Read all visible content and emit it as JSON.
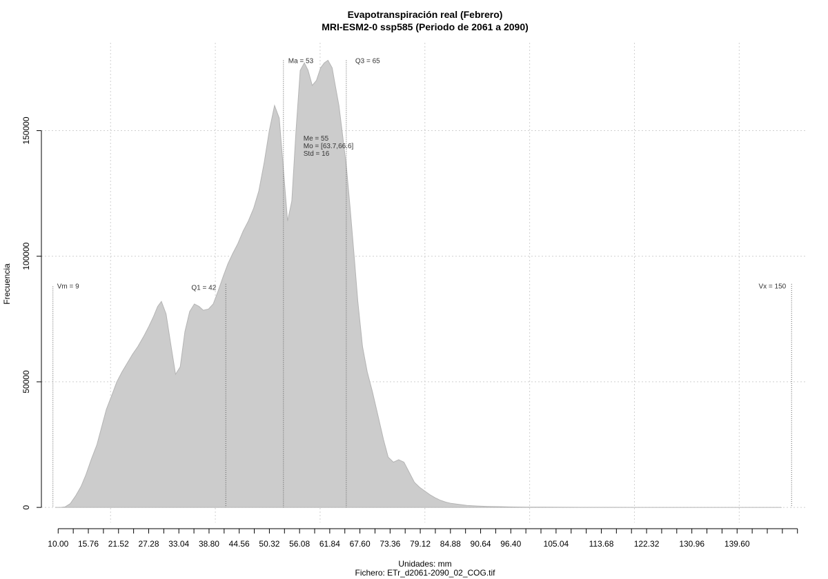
{
  "chart_data": {
    "type": "area",
    "title": "Evapotranspiración real (Febrero)",
    "subtitle": "MRI-ESM2-0 ssp585 (Periodo de 2061 a 2090)",
    "xlabel": "Unidades: mm",
    "ylabel": "Frecuencia",
    "footer": "Fichero: ETr_d2061-2090_02_COG.tif",
    "xlim": [
      6.8,
      153
    ],
    "ylim": [
      -6000,
      185000
    ],
    "grid": true,
    "fill_color": "#cccccc",
    "x_tick_labels": [
      "10.00",
      "15.76",
      "21.52",
      "27.28",
      "33.04",
      "38.80",
      "44.56",
      "50.32",
      "56.08",
      "61.84",
      "67.60",
      "73.36",
      "79.12",
      "84.88",
      "90.64",
      "96.40",
      "105.04",
      "113.68",
      "122.32",
      "130.96",
      "139.60"
    ],
    "y_ticks": [
      0,
      50000,
      100000,
      150000
    ],
    "y_tick_labels": [
      "0",
      "50000",
      "100000",
      "150000"
    ],
    "annotations": {
      "vm": "Vm = 9",
      "q1": "Q1 = 42",
      "ma": "Ma = 53",
      "q3": "Q3 = 65",
      "vx": "Vx = 150",
      "stats": [
        "Me = 55",
        "Mo = [63.7,66.6]",
        "Std = 16"
      ]
    },
    "markers": {
      "vm": 9,
      "q1": 42,
      "ma": 53,
      "q3": 65,
      "vx": 150
    },
    "x": [
      9.5,
      10.5,
      11.3,
      12.3,
      13.3,
      14.4,
      15.3,
      16.3,
      17.4,
      18.3,
      19.2,
      20.3,
      21.2,
      22.2,
      23.2,
      24.2,
      25.2,
      26.3,
      27.3,
      28.2,
      29.0,
      29.7,
      30.6,
      31.5,
      32.4,
      33.3,
      34.2,
      35.1,
      36.0,
      36.9,
      37.7,
      38.7,
      39.6,
      40.5,
      41.5,
      42.4,
      43.3,
      44.3,
      45.3,
      46.3,
      47.3,
      48.3,
      49.3,
      50.3,
      51.3,
      52.2,
      53.1,
      53.8,
      54.6,
      55.4,
      56.2,
      57.0,
      57.7,
      58.5,
      59.3,
      60.1,
      60.8,
      61.5,
      62.3,
      62.9,
      63.6,
      64.3,
      65.0,
      65.7,
      66.5,
      67.2,
      68.1,
      69.0,
      70.0,
      71.0,
      72.1,
      73.0,
      74.0,
      75.0,
      76.0,
      77.0,
      78.0,
      79.0,
      80.0,
      81.0,
      82.0,
      83.0,
      84.0,
      85.0,
      86.5,
      88.0,
      90.0,
      92.0,
      94.0,
      96.0,
      98.0,
      100.0,
      103.0,
      106.0,
      110.0,
      115.0,
      120.0,
      130.0,
      140.0,
      148.0
    ],
    "y": [
      0,
      0,
      200,
      1500,
      4500,
      8500,
      13000,
      19000,
      25000,
      32000,
      39000,
      45000,
      50000,
      54000,
      57500,
      61000,
      64000,
      68000,
      72000,
      76000,
      80000,
      82000,
      77000,
      65000,
      53000,
      56000,
      70000,
      78000,
      81000,
      80000,
      78500,
      79000,
      81000,
      86000,
      92000,
      97000,
      101000,
      105000,
      110000,
      114000,
      119000,
      126000,
      137000,
      150000,
      160000,
      155000,
      132000,
      114000,
      122000,
      150000,
      174000,
      177000,
      174000,
      168000,
      170000,
      175000,
      177000,
      178000,
      175000,
      168000,
      160000,
      148000,
      136000,
      120000,
      100000,
      82000,
      64000,
      54000,
      46000,
      37000,
      27000,
      20000,
      18000,
      19000,
      18000,
      14000,
      10000,
      8000,
      6500,
      5000,
      3800,
      2800,
      2100,
      1600,
      1200,
      800,
      550,
      400,
      300,
      200,
      150,
      100,
      80,
      60,
      40,
      30,
      20,
      10,
      5,
      0
    ]
  }
}
